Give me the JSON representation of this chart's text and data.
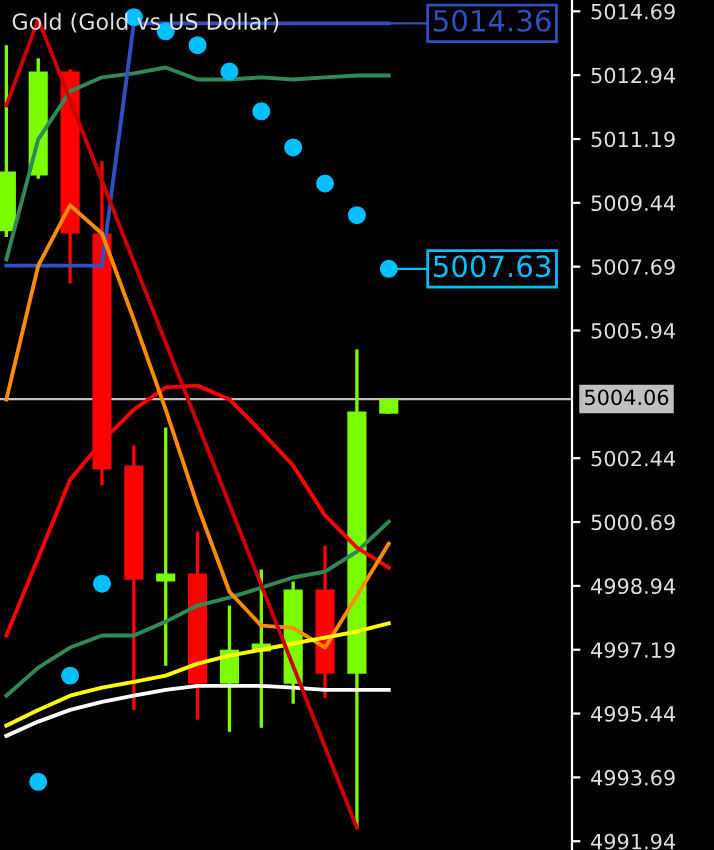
{
  "chart_data": {
    "type": "candlestick",
    "title": "Gold (Gold vs US Dollar)",
    "categories": [
      null,
      null,
      null,
      null,
      null,
      null,
      null,
      null,
      null,
      null,
      null,
      null,
      null
    ],
    "ohlc": [
      [
        5008.66,
        5013.76,
        5008.5,
        5010.3
      ],
      [
        5010.19,
        5013.4,
        5010.1,
        5013.04
      ],
      [
        5013.04,
        5013.1,
        5007.23,
        5008.6
      ],
      [
        5008.6,
        5010.58,
        5001.69,
        5002.13
      ],
      [
        5002.24,
        5002.79,
        4995.54,
        4999.11
      ],
      [
        4999.06,
        5003.28,
        4996.75,
        4999.28
      ],
      [
        4999.28,
        5000.43,
        4995.27,
        4996.26
      ],
      [
        4996.26,
        4998.4,
        4994.94,
        4997.19
      ],
      [
        4997.14,
        4999.39,
        4995.05,
        4997.36
      ],
      [
        4996.26,
        4999.06,
        4995.71,
        4998.84
      ],
      [
        4998.84,
        5000.04,
        4995.87,
        4996.53
      ],
      [
        4996.53,
        5005.42,
        4992.31,
        5003.72
      ],
      [
        5003.66,
        5004.06,
        5003.66,
        5004.06
      ]
    ],
    "colors": [
      "#7cfc00",
      "#7cfc00",
      "#ff0000",
      "#ff0000",
      "#ff0000",
      "#7cfc00",
      "#ff0000",
      "#7cfc00",
      "#7cfc00",
      "#7cfc00",
      "#ff0000",
      "#7cfc00",
      "#7cfc00"
    ],
    "series": [
      {
        "type": "line",
        "color": "#2e8b57",
        "values": [
          5007.89,
          5011.18,
          5012.5,
          5012.88,
          5012.99,
          5013.15,
          5012.82,
          5012.82,
          5012.88,
          5012.82,
          5012.88,
          5012.93,
          5012.93
        ]
      },
      {
        "type": "line",
        "color": "#2e8b57",
        "values": [
          4995.93,
          4996.7,
          4997.25,
          4997.58,
          4997.58,
          4997.96,
          4998.4,
          4998.62,
          4998.89,
          4999.17,
          4999.33,
          4999.88,
          5000.7
        ]
      },
      {
        "type": "line",
        "color": "#3050c0",
        "values": [
          5007.72,
          5007.72,
          5007.72,
          5007.72,
          5014.36,
          5014.36,
          5014.36,
          5014.36,
          5014.36,
          5014.36,
          5014.36,
          5014.36,
          5014.36
        ],
        "value_labels": [
          null,
          null,
          null,
          null,
          null,
          null,
          null,
          null,
          null,
          null,
          null,
          null,
          "5014.36"
        ]
      },
      {
        "type": "line",
        "color": "#ff0000",
        "values": [
          4997.58,
          4999.71,
          5001.85,
          5002.9,
          5003.77,
          5004.38,
          5004.43,
          5004.05,
          5003.17,
          5002.24,
          5000.87,
          4999.99,
          4999.44
        ]
      },
      {
        "type": "line",
        "color": "#ff8c00",
        "values": [
          5004.05,
          5007.72,
          5009.37,
          5008.6,
          5006.24,
          5003.77,
          5001.14,
          4998.78,
          4997.85,
          4997.79,
          4997.25,
          4998.67,
          5000.1
        ]
      },
      {
        "type": "line",
        "color": "#ffff00",
        "values": [
          4995.11,
          4995.54,
          4995.93,
          4996.15,
          4996.31,
          4996.48,
          4996.81,
          4997.03,
          4997.19,
          4997.36,
          4997.52,
          4997.69,
          4997.91
        ]
      },
      {
        "type": "line",
        "color": "#ffffff",
        "values": [
          4994.83,
          4995.22,
          4995.54,
          4995.76,
          4995.93,
          4996.09,
          4996.2,
          4996.2,
          4996.2,
          4996.15,
          4996.09,
          4996.09,
          4996.09
        ]
      },
      {
        "type": "line",
        "color": "#cc0000",
        "values": [
          5012.11,
          5014.47,
          null,
          null,
          null,
          null,
          null,
          null,
          null,
          null,
          null,
          4992.31,
          null
        ]
      },
      {
        "type": "scatter",
        "color": "#00bfff",
        "marker": "circle",
        "values": [
          null,
          4993.57,
          4996.48,
          4999.0,
          5014.53,
          5014.14,
          5013.76,
          5013.04,
          5011.95,
          5010.96,
          5009.97,
          5009.1,
          5007.63
        ],
        "value_labels": [
          null,
          null,
          null,
          null,
          null,
          null,
          null,
          null,
          null,
          null,
          null,
          null,
          "5007.63"
        ]
      }
    ],
    "ref_lines": [
      {
        "axis": "y",
        "value": 5004.06,
        "label": "5004.06",
        "color": "#c0c0c0"
      }
    ],
    "ylim": [
      4991.7,
      5015.0
    ],
    "yticks": [
      5014.69,
      5012.94,
      5011.19,
      5009.44,
      5007.69,
      5005.94,
      4995.44,
      4993.69,
      4991.94,
      5002.44,
      5000.69,
      4998.94,
      4997.19
    ],
    "tick_labels": "y",
    "grid": false,
    "legend": false
  }
}
